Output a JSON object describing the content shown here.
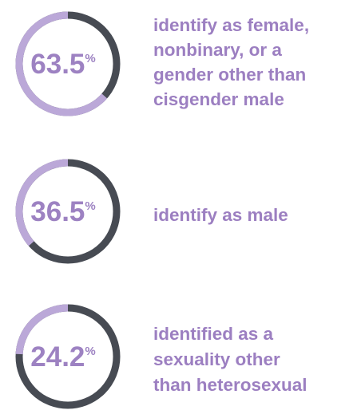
{
  "items": [
    {
      "value": 63.5,
      "unit": "%",
      "label_lines": [
        "identify as female,",
        "nonbinary, or a",
        "gender other than",
        "cisgender male"
      ]
    },
    {
      "value": 36.5,
      "unit": "%",
      "label_lines": [
        "identify as male"
      ]
    },
    {
      "value": 24.2,
      "unit": "%",
      "label_lines": [
        "identified as a",
        "sexuality other",
        "than heterosexual"
      ]
    }
  ]
}
